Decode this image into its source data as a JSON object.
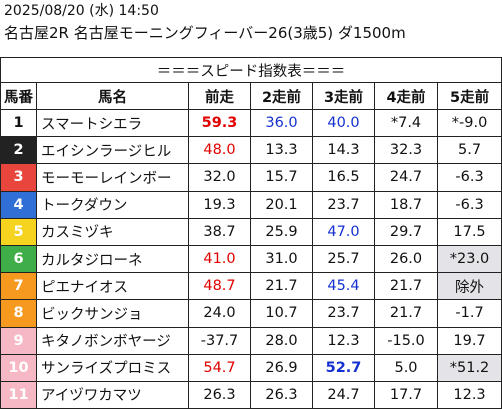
{
  "header": {
    "date_line": "2025/08/20 (水) 14:50",
    "race_line": "名古屋2R 名古屋モーニングフィーバー26(3歳5) ダ1500m"
  },
  "table": {
    "title": "＝＝＝スピード指数表＝＝＝",
    "columns": [
      "馬番",
      "馬名",
      "前走",
      "2走前",
      "3走前",
      "4走前",
      "5走前"
    ],
    "rows": [
      {
        "num": "1",
        "name": "スマートシエラ",
        "bg": "#ffffff",
        "fg": "#111111",
        "cells": [
          {
            "v": "59.3",
            "c": "red",
            "b": true
          },
          {
            "v": "36.0",
            "c": "blue"
          },
          {
            "v": "40.0",
            "c": "blue"
          },
          {
            "v": "*7.4"
          },
          {
            "v": "*-9.0"
          }
        ]
      },
      {
        "num": "2",
        "name": "エイシンラージヒル",
        "bg": "#222222",
        "fg": "#ffffff",
        "cells": [
          {
            "v": "48.0",
            "c": "red"
          },
          {
            "v": "13.3"
          },
          {
            "v": "14.3"
          },
          {
            "v": "32.3"
          },
          {
            "v": "5.7"
          }
        ]
      },
      {
        "num": "3",
        "name": "モーモーレインボー",
        "bg": "#e8453c",
        "fg": "#ffffff",
        "cells": [
          {
            "v": "32.0"
          },
          {
            "v": "15.7"
          },
          {
            "v": "16.5"
          },
          {
            "v": "24.7"
          },
          {
            "v": "-6.3"
          }
        ]
      },
      {
        "num": "4",
        "name": "トークダウン",
        "bg": "#2f6fd6",
        "fg": "#ffffff",
        "cells": [
          {
            "v": "19.3"
          },
          {
            "v": "20.1"
          },
          {
            "v": "23.7"
          },
          {
            "v": "18.7"
          },
          {
            "v": "-6.3"
          }
        ]
      },
      {
        "num": "5",
        "name": "カスミヅキ",
        "bg": "#f5d31f",
        "fg": "#ffffff",
        "cells": [
          {
            "v": "38.7"
          },
          {
            "v": "25.9"
          },
          {
            "v": "47.0",
            "c": "blue"
          },
          {
            "v": "29.7"
          },
          {
            "v": "17.5"
          }
        ]
      },
      {
        "num": "6",
        "name": "カルタジローネ",
        "bg": "#3fae49",
        "fg": "#ffffff",
        "cells": [
          {
            "v": "41.0",
            "c": "red"
          },
          {
            "v": "31.0"
          },
          {
            "v": "25.7"
          },
          {
            "v": "26.0"
          },
          {
            "v": "*23.0",
            "s": true
          }
        ]
      },
      {
        "num": "7",
        "name": "ピエナイオス",
        "bg": "#f59a1f",
        "fg": "#ffffff",
        "cells": [
          {
            "v": "48.7",
            "c": "red"
          },
          {
            "v": "21.7"
          },
          {
            "v": "45.4",
            "c": "blue"
          },
          {
            "v": "21.7"
          },
          {
            "v": "除外",
            "s": true
          }
        ]
      },
      {
        "num": "8",
        "name": "ビックサンジョ",
        "bg": "#f59a1f",
        "fg": "#ffffff",
        "cells": [
          {
            "v": "24.0"
          },
          {
            "v": "10.7"
          },
          {
            "v": "23.7"
          },
          {
            "v": "21.7"
          },
          {
            "v": "-1.7"
          }
        ]
      },
      {
        "num": "9",
        "name": "キタノボンボヤージ",
        "bg": "#f5b8c4",
        "fg": "#ffffff",
        "cells": [
          {
            "v": "-37.7"
          },
          {
            "v": "28.0"
          },
          {
            "v": "12.3"
          },
          {
            "v": "-15.0"
          },
          {
            "v": "19.7"
          }
        ]
      },
      {
        "num": "10",
        "name": "サンライズプロミス",
        "bg": "#f5b8c4",
        "fg": "#ffffff",
        "cells": [
          {
            "v": "54.7",
            "c": "red"
          },
          {
            "v": "26.9"
          },
          {
            "v": "52.7",
            "c": "blue",
            "b": true
          },
          {
            "v": "5.0"
          },
          {
            "v": "*51.2",
            "s": true
          }
        ]
      },
      {
        "num": "11",
        "name": "アイヅワカマツ",
        "bg": "#f5b8c4",
        "fg": "#ffffff",
        "cells": [
          {
            "v": "26.3"
          },
          {
            "v": "26.3"
          },
          {
            "v": "24.7"
          },
          {
            "v": "17.7"
          },
          {
            "v": "12.3"
          }
        ]
      }
    ]
  }
}
